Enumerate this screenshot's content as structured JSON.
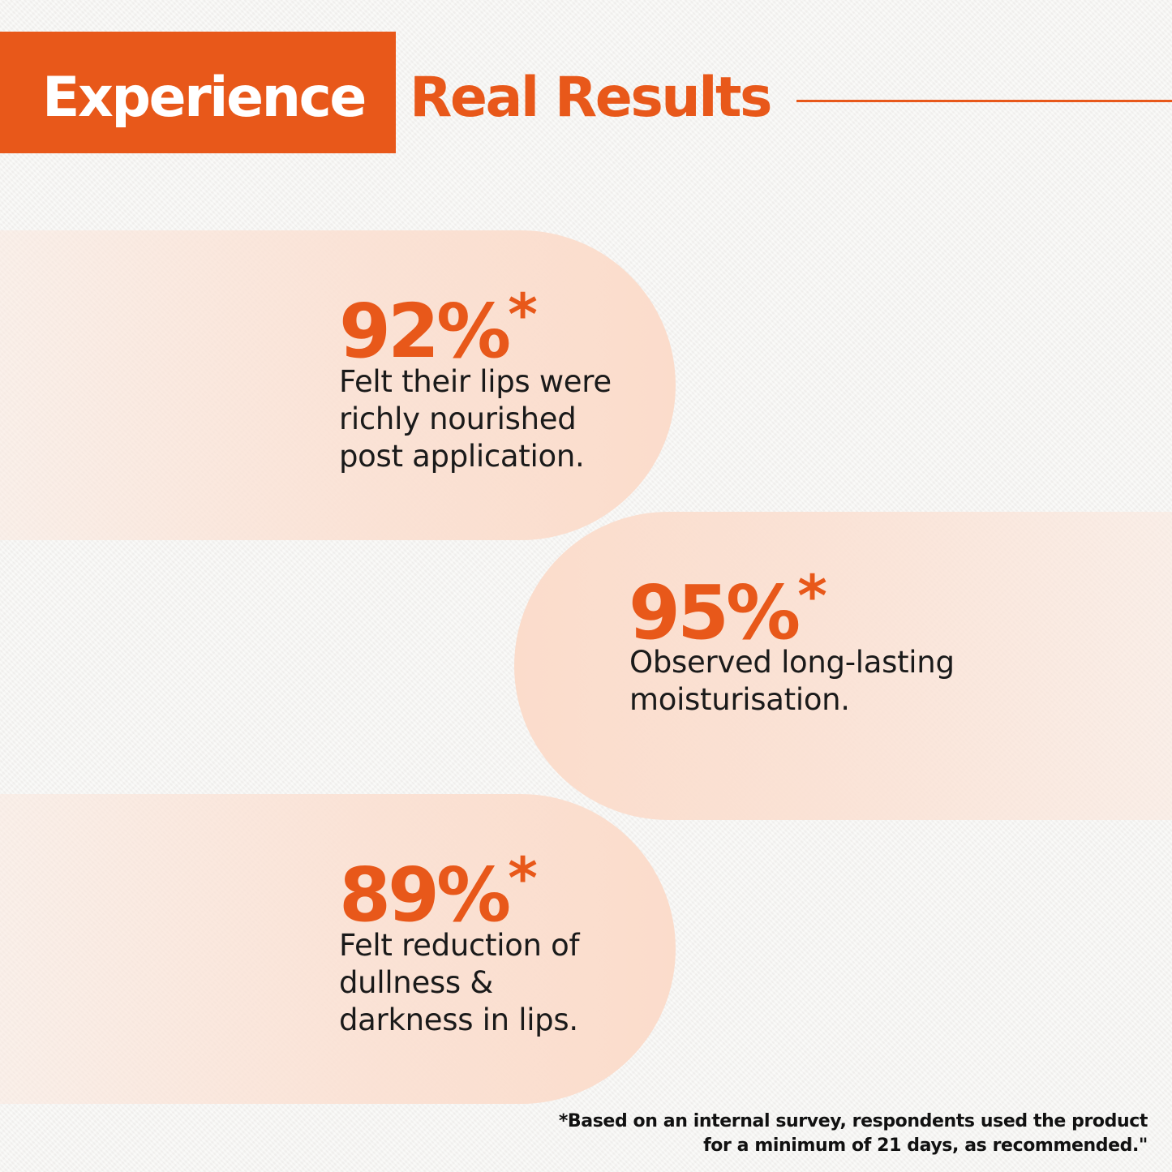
{
  "header": {
    "highlight_word": "Experience",
    "title_rest": "Real Results"
  },
  "stats": [
    {
      "value": "92%",
      "marker": "*",
      "description": "Felt their lips were\nrichly nourished\npost application."
    },
    {
      "value": "95%",
      "marker": "*",
      "description": "Observed long-lasting\nmoisturisation."
    },
    {
      "value": "89%",
      "marker": "*",
      "description": "Felt reduction of\ndullness &\ndarkness in lips."
    }
  ],
  "footnote": "*Based on an internal survey, respondents used the product for a minimum of 21 days, as recommended.\"",
  "colors": {
    "accent": "#e8581a",
    "pill": "#fbdccb",
    "text": "#1a1a1a",
    "header_text": "#ffffff"
  }
}
